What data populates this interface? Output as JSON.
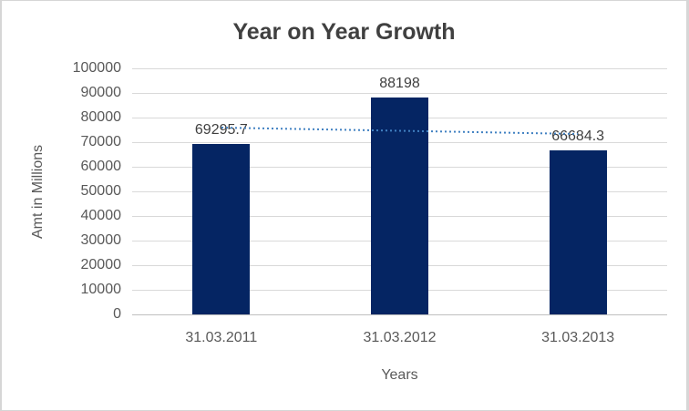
{
  "window": {
    "background": "#ffffff",
    "border_color": "#d6d6d6"
  },
  "chart_data": {
    "type": "bar",
    "title": "Year on Year Growth",
    "xlabel": "Years",
    "ylabel": "Amt in Millions",
    "categories": [
      "31.03.2011",
      "31.03.2012",
      "31.03.2013"
    ],
    "values": [
      69295.7,
      88198,
      66684.3
    ],
    "data_labels": [
      "69295.7",
      "88198",
      "66684.3"
    ],
    "ylim": [
      0,
      100000
    ],
    "ytick_step": 10000,
    "grid": true,
    "legend": "none",
    "bar_color": "#052563",
    "gridline_color": "#d9d9d9",
    "axis_line_color": "#bfbfbf",
    "title_color": "#404040",
    "tick_label_color": "#595959",
    "data_label_color": "#3f3f3f",
    "trendline": {
      "type": "linear",
      "style": "dotted",
      "color": "#4181C2",
      "start_value": 76031.7,
      "end_value": 73420.3
    }
  }
}
